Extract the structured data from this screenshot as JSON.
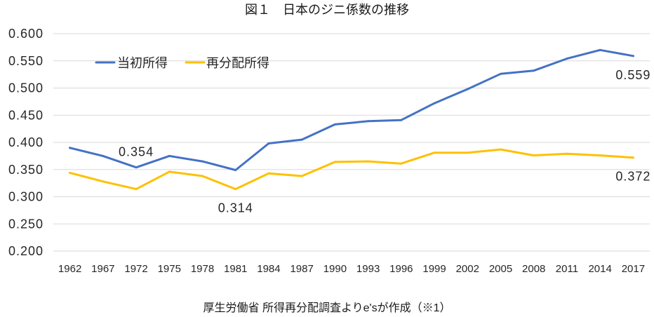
{
  "chart_data": {
    "type": "line",
    "title": "図１　日本のジニ係数の推移",
    "source": "厚生労働省 所得再分配調査よりe'sが作成（※1）",
    "categories": [
      "1962",
      "1967",
      "1972",
      "1975",
      "1978",
      "1981",
      "1984",
      "1987",
      "1990",
      "1993",
      "1996",
      "1999",
      "2002",
      "2005",
      "2008",
      "2011",
      "2014",
      "2017"
    ],
    "ylim": [
      0.2,
      0.6
    ],
    "yticks": [
      "0.600",
      "0.550",
      "0.500",
      "0.450",
      "0.400",
      "0.350",
      "0.300",
      "0.250",
      "0.200"
    ],
    "grid": true,
    "legend_position": "top-left",
    "series": [
      {
        "name": "当初所得",
        "color": "#4472C4",
        "values": [
          0.39,
          0.375,
          0.354,
          0.375,
          0.365,
          0.349,
          0.398,
          0.405,
          0.433,
          0.439,
          0.441,
          0.472,
          0.498,
          0.526,
          0.532,
          0.554,
          0.57,
          0.559
        ],
        "labeled_points": [
          {
            "x": 1972,
            "label": "0.354",
            "placement": "above"
          },
          {
            "x": 2017,
            "label": "0.559",
            "placement": "below"
          }
        ]
      },
      {
        "name": "再分配所得",
        "color": "#FFC000",
        "values": [
          0.344,
          0.328,
          0.314,
          0.346,
          0.338,
          0.314,
          0.343,
          0.338,
          0.364,
          0.365,
          0.361,
          0.381,
          0.381,
          0.387,
          0.376,
          0.379,
          0.376,
          0.372
        ],
        "labeled_points": [
          {
            "x": 1981,
            "label": "0.314",
            "placement": "below"
          },
          {
            "x": 2017,
            "label": "0.372",
            "placement": "below"
          }
        ]
      }
    ]
  }
}
